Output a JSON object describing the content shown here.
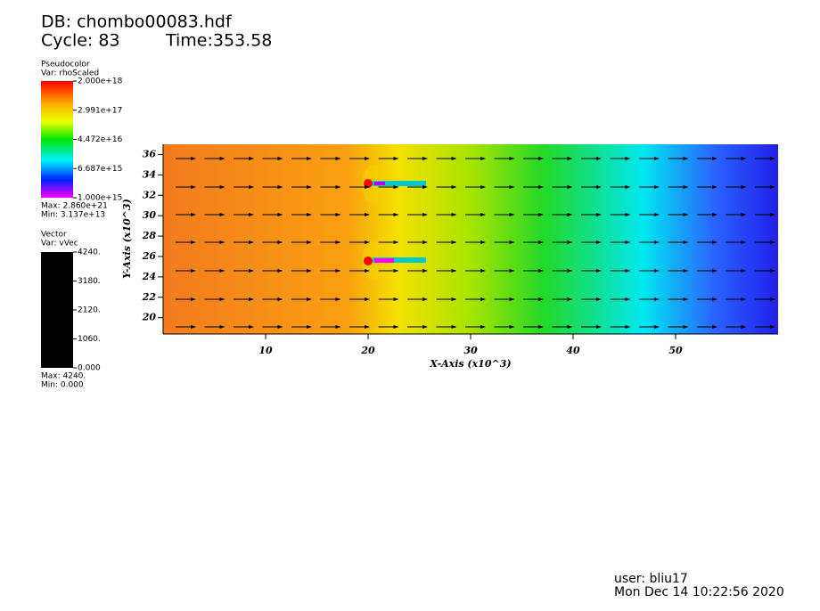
{
  "header": {
    "db": "DB: chombo00083.hdf",
    "cycle": "Cycle: 83",
    "time": "Time:353.58"
  },
  "pseudocolor_legend": {
    "title": "Pseudocolor",
    "var": "Var: rhoScaled",
    "labels": [
      "2.000e+18",
      "2.991e+17",
      "4.472e+16",
      "6.687e+15",
      "1.000e+15"
    ],
    "max": "Max:  2.860e+21",
    "min": "Min:  3.137e+13"
  },
  "vector_legend": {
    "title": "Vector",
    "var": "Var: vVec",
    "labels": [
      "4240.",
      "3180.",
      "2120.",
      "1060.",
      "0.000"
    ],
    "max": "Max:  4240.",
    "min": "Min:  0.000"
  },
  "chart_data": {
    "type": "pseudocolor",
    "x_label": "X-Axis (x10^3)",
    "y_label": "Y-Axis (x10^3)",
    "xlim": [
      0,
      60
    ],
    "ylim": [
      18.4,
      37
    ],
    "xticks": [
      10,
      20,
      30,
      40,
      50
    ],
    "yticks": [
      20,
      22,
      24,
      26,
      28,
      30,
      32,
      34,
      36
    ]
  },
  "footer": {
    "user": "user: bliu17",
    "date": "Mon Dec 14 10:22:56 2020"
  }
}
